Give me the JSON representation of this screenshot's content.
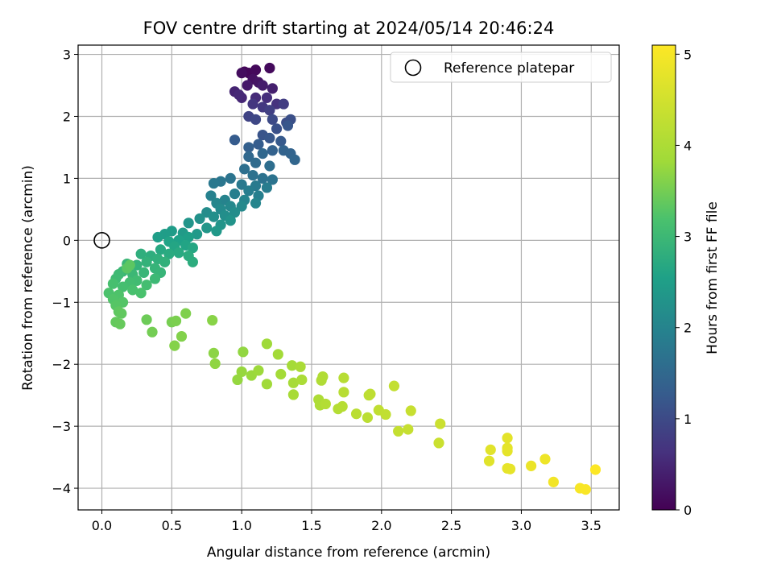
{
  "chart_data": {
    "type": "scatter",
    "title": "FOV centre drift starting at 2024/05/14 20:46:24",
    "xlabel": "Angular distance from reference (arcmin)",
    "ylabel": "Rotation from reference (arcmin)",
    "xlim": [
      -0.17,
      3.7
    ],
    "ylim": [
      -4.35,
      3.15
    ],
    "xticks": [
      0.0,
      0.5,
      1.0,
      1.5,
      2.0,
      2.5,
      3.0,
      3.5
    ],
    "xtick_labels": [
      "0.0",
      "0.5",
      "1.0",
      "1.5",
      "2.0",
      "2.5",
      "3.0",
      "3.5"
    ],
    "yticks": [
      -4,
      -3,
      -2,
      -1,
      0,
      1,
      2,
      3
    ],
    "ytick_labels": [
      "−4",
      "−3",
      "−2",
      "−1",
      "0",
      "1",
      "2",
      "3"
    ],
    "grid": true,
    "legend": {
      "placement": "top-right",
      "entries": [
        "Reference platepar"
      ]
    },
    "reference_point": {
      "x": 0.0,
      "y": 0.0,
      "label": "Reference platepar"
    },
    "colorbar": {
      "label": "Hours from first FF file",
      "range": [
        0,
        5.1
      ],
      "ticks": [
        0,
        1,
        2,
        3,
        4,
        5
      ],
      "tick_labels": [
        "0",
        "1",
        "2",
        "3",
        "4",
        "5"
      ],
      "colormap": "viridis"
    },
    "series": [
      {
        "points": [
          {
            "x": 1.02,
            "y": 2.72,
            "t": 0.05
          },
          {
            "x": 1.05,
            "y": 2.7,
            "t": 0.08
          },
          {
            "x": 1.1,
            "y": 2.75,
            "t": 0.1
          },
          {
            "x": 1.2,
            "y": 2.78,
            "t": 0.12
          },
          {
            "x": 1.0,
            "y": 2.7,
            "t": 0.15
          },
          {
            "x": 1.08,
            "y": 2.6,
            "t": 0.2
          },
          {
            "x": 1.12,
            "y": 2.55,
            "t": 0.25
          },
          {
            "x": 1.04,
            "y": 2.5,
            "t": 0.3
          },
          {
            "x": 1.15,
            "y": 2.5,
            "t": 0.35
          },
          {
            "x": 1.22,
            "y": 2.45,
            "t": 0.4
          },
          {
            "x": 0.95,
            "y": 2.4,
            "t": 0.45
          },
          {
            "x": 1.0,
            "y": 2.3,
            "t": 0.5
          },
          {
            "x": 0.98,
            "y": 2.35,
            "t": 0.52
          },
          {
            "x": 1.1,
            "y": 2.3,
            "t": 0.55
          },
          {
            "x": 1.18,
            "y": 2.3,
            "t": 0.6
          },
          {
            "x": 1.25,
            "y": 2.2,
            "t": 0.65
          },
          {
            "x": 1.08,
            "y": 2.2,
            "t": 0.7
          },
          {
            "x": 1.15,
            "y": 2.15,
            "t": 0.75
          },
          {
            "x": 1.3,
            "y": 2.2,
            "t": 0.8
          },
          {
            "x": 1.2,
            "y": 2.1,
            "t": 0.85
          },
          {
            "x": 1.05,
            "y": 2.0,
            "t": 0.9
          },
          {
            "x": 1.1,
            "y": 1.95,
            "t": 0.95
          },
          {
            "x": 1.22,
            "y": 1.95,
            "t": 1.0
          },
          {
            "x": 1.32,
            "y": 1.9,
            "t": 1.05
          },
          {
            "x": 1.35,
            "y": 1.95,
            "t": 1.08
          },
          {
            "x": 1.25,
            "y": 1.8,
            "t": 1.1
          },
          {
            "x": 1.15,
            "y": 1.7,
            "t": 1.15
          },
          {
            "x": 1.33,
            "y": 1.85,
            "t": 1.18
          },
          {
            "x": 1.2,
            "y": 1.65,
            "t": 1.2
          },
          {
            "x": 1.28,
            "y": 1.6,
            "t": 1.25
          },
          {
            "x": 0.95,
            "y": 1.62,
            "t": 1.28
          },
          {
            "x": 1.12,
            "y": 1.55,
            "t": 1.3
          },
          {
            "x": 1.05,
            "y": 1.5,
            "t": 1.35
          },
          {
            "x": 1.22,
            "y": 1.45,
            "t": 1.38
          },
          {
            "x": 1.3,
            "y": 1.45,
            "t": 1.4
          },
          {
            "x": 1.35,
            "y": 1.4,
            "t": 1.42
          },
          {
            "x": 1.38,
            "y": 1.3,
            "t": 1.45
          },
          {
            "x": 1.15,
            "y": 1.4,
            "t": 1.48
          },
          {
            "x": 1.05,
            "y": 1.35,
            "t": 1.5
          },
          {
            "x": 1.1,
            "y": 1.25,
            "t": 1.55
          },
          {
            "x": 1.2,
            "y": 1.2,
            "t": 1.6
          },
          {
            "x": 1.02,
            "y": 1.15,
            "t": 1.62
          },
          {
            "x": 1.08,
            "y": 1.05,
            "t": 1.65
          },
          {
            "x": 1.15,
            "y": 1.0,
            "t": 1.68
          },
          {
            "x": 1.22,
            "y": 0.98,
            "t": 1.7
          },
          {
            "x": 0.92,
            "y": 1.0,
            "t": 1.72
          },
          {
            "x": 0.85,
            "y": 0.95,
            "t": 1.75
          },
          {
            "x": 0.8,
            "y": 0.92,
            "t": 1.78
          },
          {
            "x": 1.0,
            "y": 0.9,
            "t": 1.8
          },
          {
            "x": 1.1,
            "y": 0.88,
            "t": 1.82
          },
          {
            "x": 1.18,
            "y": 0.85,
            "t": 1.85
          },
          {
            "x": 1.05,
            "y": 0.8,
            "t": 1.88
          },
          {
            "x": 0.95,
            "y": 0.75,
            "t": 1.9
          },
          {
            "x": 1.12,
            "y": 0.72,
            "t": 1.92
          },
          {
            "x": 0.78,
            "y": 0.72,
            "t": 1.95
          },
          {
            "x": 0.88,
            "y": 0.65,
            "t": 1.98
          },
          {
            "x": 1.02,
            "y": 0.65,
            "t": 2.0
          },
          {
            "x": 1.1,
            "y": 0.6,
            "t": 2.02
          },
          {
            "x": 0.82,
            "y": 0.6,
            "t": 2.05
          },
          {
            "x": 0.92,
            "y": 0.55,
            "t": 2.08
          },
          {
            "x": 1.0,
            "y": 0.55,
            "t": 2.1
          },
          {
            "x": 0.85,
            "y": 0.5,
            "t": 2.12
          },
          {
            "x": 0.75,
            "y": 0.45,
            "t": 2.15
          },
          {
            "x": 0.95,
            "y": 0.45,
            "t": 2.18
          },
          {
            "x": 0.88,
            "y": 0.4,
            "t": 2.2
          },
          {
            "x": 0.8,
            "y": 0.38,
            "t": 2.22
          },
          {
            "x": 0.7,
            "y": 0.35,
            "t": 2.25
          },
          {
            "x": 0.92,
            "y": 0.32,
            "t": 2.28
          },
          {
            "x": 0.85,
            "y": 0.25,
            "t": 2.3
          },
          {
            "x": 0.62,
            "y": 0.28,
            "t": 2.32
          },
          {
            "x": 0.75,
            "y": 0.2,
            "t": 2.35
          },
          {
            "x": 0.82,
            "y": 0.15,
            "t": 2.38
          },
          {
            "x": 0.68,
            "y": 0.1,
            "t": 2.4
          },
          {
            "x": 0.58,
            "y": 0.12,
            "t": 2.42
          },
          {
            "x": 0.5,
            "y": 0.15,
            "t": 2.45
          },
          {
            "x": 0.45,
            "y": 0.1,
            "t": 2.48
          },
          {
            "x": 0.4,
            "y": 0.05,
            "t": 2.5
          },
          {
            "x": 0.62,
            "y": 0.05,
            "t": 2.52
          },
          {
            "x": 0.55,
            "y": 0.0,
            "t": 2.55
          },
          {
            "x": 0.48,
            "y": -0.02,
            "t": 2.58
          },
          {
            "x": 0.6,
            "y": -0.08,
            "t": 2.6
          },
          {
            "x": 0.52,
            "y": -0.1,
            "t": 2.62
          },
          {
            "x": 0.65,
            "y": -0.12,
            "t": 2.65
          },
          {
            "x": 0.42,
            "y": -0.15,
            "t": 2.68
          },
          {
            "x": 0.55,
            "y": -0.2,
            "t": 2.7
          },
          {
            "x": 0.48,
            "y": -0.22,
            "t": 2.72
          },
          {
            "x": 0.62,
            "y": -0.25,
            "t": 2.74
          },
          {
            "x": 0.65,
            "y": -0.35,
            "t": 2.76
          },
          {
            "x": 0.35,
            "y": -0.25,
            "t": 2.78
          },
          {
            "x": 0.28,
            "y": -0.22,
            "t": 2.8
          },
          {
            "x": 0.4,
            "y": -0.3,
            "t": 2.82
          },
          {
            "x": 0.45,
            "y": -0.35,
            "t": 2.84
          },
          {
            "x": 0.32,
            "y": -0.35,
            "t": 2.86
          },
          {
            "x": 0.25,
            "y": -0.4,
            "t": 2.88
          },
          {
            "x": 0.38,
            "y": -0.45,
            "t": 2.9
          },
          {
            "x": 0.42,
            "y": -0.52,
            "t": 2.92
          },
          {
            "x": 0.3,
            "y": -0.52,
            "t": 2.94
          },
          {
            "x": 0.18,
            "y": -0.38,
            "t": 2.95
          },
          {
            "x": 0.15,
            "y": -0.5,
            "t": 2.96
          },
          {
            "x": 0.22,
            "y": -0.55,
            "t": 2.98
          },
          {
            "x": 0.38,
            "y": -0.62,
            "t": 3.0
          },
          {
            "x": 0.12,
            "y": -0.55,
            "t": 3.02
          },
          {
            "x": 0.1,
            "y": -0.62,
            "t": 3.04
          },
          {
            "x": 0.25,
            "y": -0.65,
            "t": 3.06
          },
          {
            "x": 0.2,
            "y": -0.68,
            "t": 3.08
          },
          {
            "x": 0.32,
            "y": -0.72,
            "t": 3.1
          },
          {
            "x": 0.15,
            "y": -0.75,
            "t": 3.12
          },
          {
            "x": 0.08,
            "y": -0.7,
            "t": 3.14
          },
          {
            "x": 0.22,
            "y": -0.8,
            "t": 3.16
          },
          {
            "x": 0.28,
            "y": -0.85,
            "t": 3.18
          },
          {
            "x": 0.05,
            "y": -0.85,
            "t": 3.2
          },
          {
            "x": 0.12,
            "y": -0.88,
            "t": 3.22
          },
          {
            "x": 0.08,
            "y": -0.95,
            "t": 3.24
          },
          {
            "x": 0.15,
            "y": -1.0,
            "t": 3.26
          },
          {
            "x": 0.1,
            "y": -1.05,
            "t": 3.28
          },
          {
            "x": 0.18,
            "y": -0.45,
            "t": 3.3
          },
          {
            "x": 0.2,
            "y": -0.4,
            "t": 3.32
          },
          {
            "x": 0.12,
            "y": -1.15,
            "t": 3.34
          },
          {
            "x": 0.14,
            "y": -1.18,
            "t": 3.36
          },
          {
            "x": 0.1,
            "y": -1.32,
            "t": 3.38
          },
          {
            "x": 0.13,
            "y": -1.35,
            "t": 3.4
          },
          {
            "x": 0.32,
            "y": -1.28,
            "t": 3.45
          },
          {
            "x": 0.36,
            "y": -1.48,
            "t": 3.5
          },
          {
            "x": 0.5,
            "y": -1.32,
            "t": 3.52
          },
          {
            "x": 0.53,
            "y": -1.3,
            "t": 3.55
          },
          {
            "x": 0.6,
            "y": -1.18,
            "t": 3.58
          },
          {
            "x": 0.57,
            "y": -1.55,
            "t": 3.6
          },
          {
            "x": 0.52,
            "y": -1.7,
            "t": 3.62
          },
          {
            "x": 0.79,
            "y": -1.29,
            "t": 3.65
          },
          {
            "x": 0.8,
            "y": -1.82,
            "t": 3.68
          },
          {
            "x": 0.81,
            "y": -1.99,
            "t": 3.7
          },
          {
            "x": 1.01,
            "y": -1.8,
            "t": 3.72
          },
          {
            "x": 0.97,
            "y": -2.25,
            "t": 3.74
          },
          {
            "x": 1.0,
            "y": -2.12,
            "t": 3.76
          },
          {
            "x": 1.07,
            "y": -2.18,
            "t": 3.78
          },
          {
            "x": 1.12,
            "y": -2.1,
            "t": 3.8
          },
          {
            "x": 1.18,
            "y": -1.67,
            "t": 3.82
          },
          {
            "x": 1.18,
            "y": -2.32,
            "t": 3.84
          },
          {
            "x": 1.26,
            "y": -1.84,
            "t": 3.86
          },
          {
            "x": 1.28,
            "y": -2.16,
            "t": 3.88
          },
          {
            "x": 1.36,
            "y": -2.02,
            "t": 3.9
          },
          {
            "x": 1.37,
            "y": -2.3,
            "t": 3.92
          },
          {
            "x": 1.37,
            "y": -2.49,
            "t": 3.94
          },
          {
            "x": 1.42,
            "y": -2.04,
            "t": 3.96
          },
          {
            "x": 1.43,
            "y": -2.25,
            "t": 3.98
          },
          {
            "x": 1.55,
            "y": -2.57,
            "t": 4.0
          },
          {
            "x": 1.56,
            "y": -2.66,
            "t": 4.02
          },
          {
            "x": 1.57,
            "y": -2.26,
            "t": 4.04
          },
          {
            "x": 1.58,
            "y": -2.2,
            "t": 4.06
          },
          {
            "x": 1.6,
            "y": -2.64,
            "t": 4.08
          },
          {
            "x": 1.69,
            "y": -2.72,
            "t": 4.1
          },
          {
            "x": 1.72,
            "y": -2.68,
            "t": 4.12
          },
          {
            "x": 1.73,
            "y": -2.22,
            "t": 4.14
          },
          {
            "x": 1.73,
            "y": -2.45,
            "t": 4.16
          },
          {
            "x": 1.82,
            "y": -2.8,
            "t": 4.18
          },
          {
            "x": 1.9,
            "y": -2.86,
            "t": 4.2
          },
          {
            "x": 1.91,
            "y": -2.5,
            "t": 4.22
          },
          {
            "x": 1.92,
            "y": -2.48,
            "t": 4.24
          },
          {
            "x": 1.98,
            "y": -2.74,
            "t": 4.26
          },
          {
            "x": 2.03,
            "y": -2.81,
            "t": 4.28
          },
          {
            "x": 2.09,
            "y": -2.35,
            "t": 4.3
          },
          {
            "x": 2.12,
            "y": -3.08,
            "t": 4.32
          },
          {
            "x": 2.19,
            "y": -3.05,
            "t": 4.34
          },
          {
            "x": 2.21,
            "y": -2.75,
            "t": 4.36
          },
          {
            "x": 2.41,
            "y": -3.27,
            "t": 4.4
          },
          {
            "x": 2.42,
            "y": -2.96,
            "t": 4.42
          },
          {
            "x": 2.77,
            "y": -3.56,
            "t": 4.7
          },
          {
            "x": 2.78,
            "y": -3.38,
            "t": 4.72
          },
          {
            "x": 2.9,
            "y": -3.19,
            "t": 4.75
          },
          {
            "x": 2.9,
            "y": -3.35,
            "t": 4.76
          },
          {
            "x": 2.9,
            "y": -3.4,
            "t": 4.77
          },
          {
            "x": 2.9,
            "y": -3.68,
            "t": 4.78
          },
          {
            "x": 2.92,
            "y": -3.69,
            "t": 4.79
          },
          {
            "x": 3.07,
            "y": -3.64,
            "t": 4.85
          },
          {
            "x": 3.17,
            "y": -3.53,
            "t": 4.9
          },
          {
            "x": 3.23,
            "y": -3.9,
            "t": 4.95
          },
          {
            "x": 3.42,
            "y": -4.0,
            "t": 5.02
          },
          {
            "x": 3.46,
            "y": -4.02,
            "t": 5.05
          },
          {
            "x": 3.53,
            "y": -3.7,
            "t": 5.08
          }
        ]
      }
    ]
  }
}
